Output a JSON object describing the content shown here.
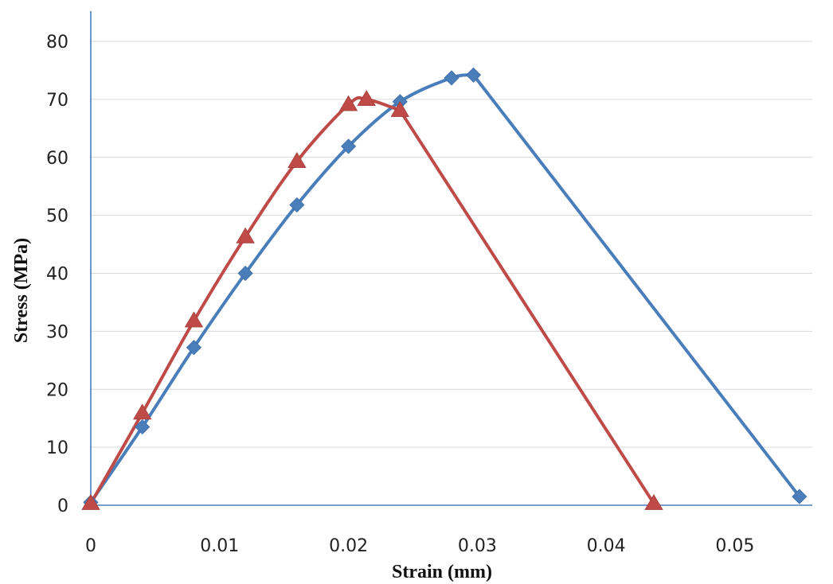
{
  "chart_data": {
    "type": "line",
    "title": "",
    "xlabel": "Strain (mm)",
    "ylabel": "Stress (MPa)",
    "xlim": [
      0,
      0.056
    ],
    "ylim": [
      0,
      80
    ],
    "x_ticks": [
      "0",
      "0.01",
      "0.02",
      "0.03",
      "0.04",
      "0.05"
    ],
    "y_ticks": [
      "0",
      "10",
      "20",
      "30",
      "40",
      "50",
      "60",
      "70",
      "80"
    ],
    "grid": "horizontal",
    "legend": "none",
    "series": [
      {
        "marker": "diamond",
        "color": "#4a7ebb",
        "points": [
          [
            0,
            0.5
          ],
          [
            0.004,
            13.5
          ],
          [
            0.008,
            27.2
          ],
          [
            0.012,
            40.0
          ],
          [
            0.016,
            51.8
          ],
          [
            0.02,
            61.9
          ],
          [
            0.024,
            69.6
          ],
          [
            0.028,
            73.7
          ],
          [
            0.0297,
            74.2
          ],
          [
            0.055,
            1.5
          ]
        ]
      },
      {
        "marker": "triangle",
        "color": "#be4b48",
        "points": [
          [
            0,
            0.3
          ],
          [
            0.004,
            15.9
          ],
          [
            0.008,
            31.8
          ],
          [
            0.012,
            46.3
          ],
          [
            0.016,
            59.3
          ],
          [
            0.02,
            69.1
          ],
          [
            0.0214,
            70.0
          ],
          [
            0.024,
            68.1
          ],
          [
            0.0437,
            0.3
          ]
        ]
      }
    ]
  }
}
